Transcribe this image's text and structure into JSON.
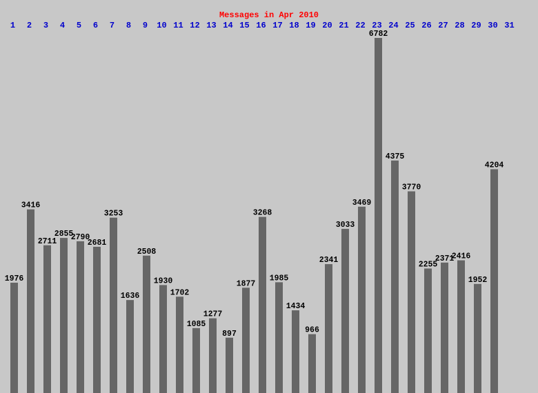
{
  "chart_data": {
    "type": "bar",
    "title": "Messages in Apr 2010",
    "categories": [
      "1",
      "2",
      "3",
      "4",
      "5",
      "6",
      "7",
      "8",
      "9",
      "10",
      "11",
      "12",
      "13",
      "14",
      "15",
      "16",
      "17",
      "18",
      "19",
      "20",
      "21",
      "22",
      "23",
      "24",
      "25",
      "26",
      "27",
      "28",
      "29",
      "30",
      "31"
    ],
    "values": [
      1976,
      3416,
      2711,
      2855,
      2790,
      2681,
      3253,
      1636,
      2508,
      1930,
      1702,
      1085,
      1277,
      897,
      1877,
      3268,
      1985,
      1434,
      966,
      2341,
      3033,
      3469,
      6782,
      4375,
      3770,
      2255,
      2371,
      2416,
      1952,
      4204,
      null
    ],
    "color": "#666666"
  }
}
